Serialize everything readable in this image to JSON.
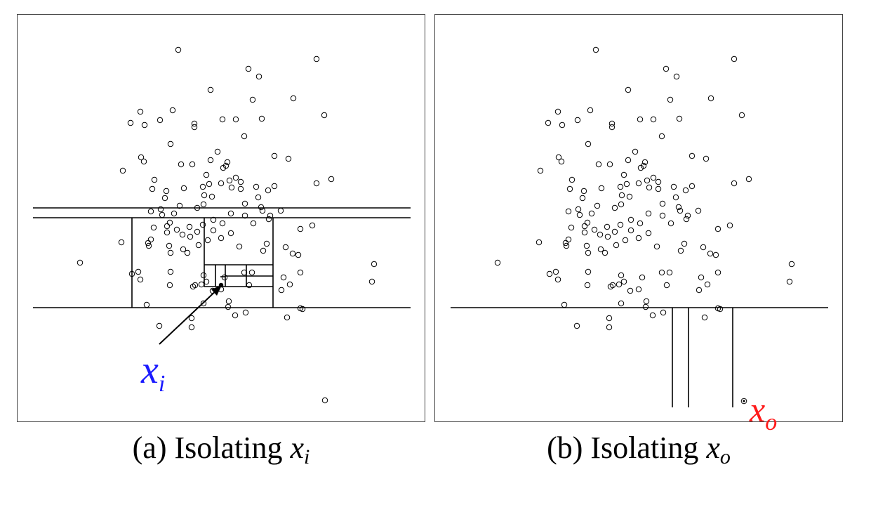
{
  "panels": [
    {
      "caption_text": "(a) Isolating ",
      "caption_var": "x",
      "caption_sub": "i",
      "point_label": "x",
      "point_label_sub": "i",
      "label_color": "#1a1aff"
    },
    {
      "caption_text": "(b) Isolating ",
      "caption_var": "x",
      "caption_sub": "o",
      "point_label": "x",
      "point_label_sub": "o",
      "label_color": "#ff1a1a"
    }
  ]
}
